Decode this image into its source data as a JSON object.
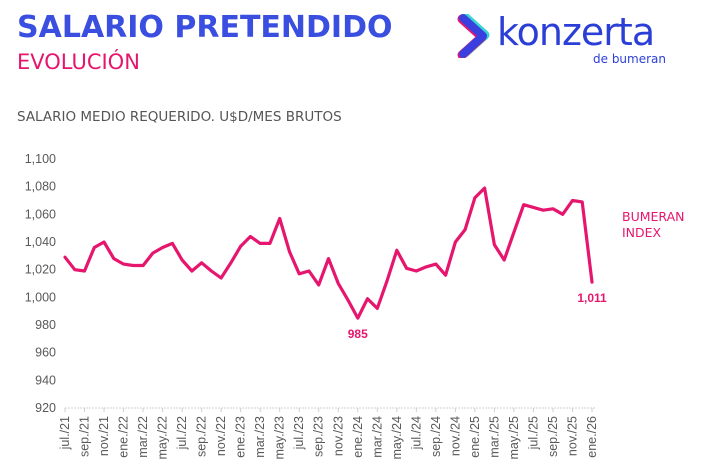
{
  "header": {
    "title": "SALARIO PRETENDIDO",
    "subtitle": "EVOLUCIÓN",
    "chart_label": "SALARIO MEDIO REQUERIDO. U$D/MES BRUTOS"
  },
  "logo": {
    "name": "konzerta",
    "tagline": "de bumeran",
    "icon": "chevron-right-logo-icon"
  },
  "colors": {
    "title": "#3a4ee0",
    "accent": "#e6156e",
    "line": "#e6156e",
    "axis_text": "#595959"
  },
  "chart_data": {
    "type": "line",
    "title": "SALARIO MEDIO REQUERIDO. U$D/MES BRUTOS",
    "xlabel": "",
    "ylabel": "",
    "ylim": [
      920,
      1100
    ],
    "yticks": [
      920,
      940,
      960,
      980,
      1000,
      1020,
      1040,
      1060,
      1080,
      1100
    ],
    "ytick_labels": [
      "920",
      "940",
      "960",
      "980",
      "1,000",
      "1,020",
      "1,040",
      "1,060",
      "1,080",
      "1,100"
    ],
    "x_tick_labels": [
      "jul./21",
      "sep./21",
      "nov./21",
      "ene./22",
      "mar./22",
      "may./22",
      "jul./22",
      "sep./22",
      "nov./22",
      "ene./23",
      "mar./23",
      "may./23",
      "jul./23",
      "sep./23",
      "nov./23",
      "ene./24",
      "mar./24",
      "may./24",
      "jul./24",
      "sep./24",
      "nov./24",
      "ene./25",
      "mar./25",
      "may./25",
      "jul./25",
      "sep./25",
      "nov./25",
      "ene./26"
    ],
    "x_tick_every_months": 2,
    "grid": false,
    "legend_position": "right",
    "series": [
      {
        "name": "BUMERAN INDEX",
        "name_lines": [
          "BUMERAN",
          "INDEX"
        ],
        "start": "jul./21",
        "end": "ene./26",
        "values": [
          1029,
          1020,
          1019,
          1036,
          1040,
          1028,
          1024,
          1023,
          1023,
          1032,
          1036,
          1039,
          1027,
          1019,
          1025,
          1019,
          1014,
          1025,
          1037,
          1044,
          1039,
          1039,
          1057,
          1033,
          1017,
          1019,
          1009,
          1028,
          1010,
          998,
          985,
          999,
          992,
          1012,
          1034,
          1021,
          1019,
          1022,
          1024,
          1016,
          1040,
          1049,
          1072,
          1079,
          1038,
          1027,
          1047,
          1067,
          1065,
          1063,
          1064,
          1060,
          1070,
          1069,
          1011
        ]
      }
    ],
    "annotations": [
      {
        "label": "985",
        "month_index": 30,
        "value": 985
      },
      {
        "label": "1,011",
        "month_index": 54,
        "value": 1011
      }
    ]
  }
}
